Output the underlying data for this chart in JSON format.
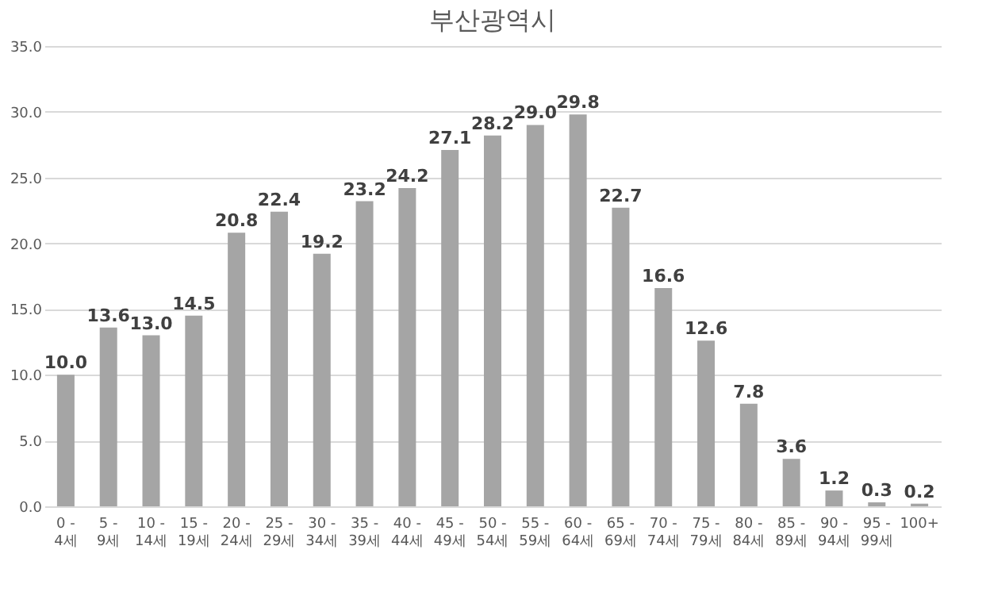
{
  "chart_data": {
    "type": "bar",
    "title": "부산광역시",
    "categories": [
      "0 - 4세",
      "5 - 9세",
      "10 - 14세",
      "15 - 19세",
      "20 - 24세",
      "25 - 29세",
      "30 - 34세",
      "35 - 39세",
      "40 - 44세",
      "45 - 49세",
      "50 - 54세",
      "55 - 59세",
      "60 - 64세",
      "65 - 69세",
      "70 - 74세",
      "75 - 79세",
      "80 - 84세",
      "85 - 89세",
      "90 - 94세",
      "95 - 99세",
      "100+"
    ],
    "values": [
      10.0,
      13.6,
      13.0,
      14.5,
      20.8,
      22.4,
      19.2,
      23.2,
      24.2,
      27.1,
      28.2,
      29.0,
      29.8,
      22.7,
      16.6,
      12.6,
      7.8,
      3.6,
      1.2,
      0.3,
      0.2
    ],
    "value_labels": [
      "10.0",
      "13.6",
      "13.0",
      "14.5",
      "20.8",
      "22.4",
      "19.2",
      "23.2",
      "24.2",
      "27.1",
      "28.2",
      "29.0",
      "29.8",
      "22.7",
      "16.6",
      "12.6",
      "7.8",
      "3.6",
      "1.2",
      "0.3",
      "0.2"
    ],
    "color": "#a5a5a5",
    "ylim": [
      0,
      35
    ],
    "yticks": [
      {
        "value": 0,
        "label": "0.0"
      },
      {
        "value": 5,
        "label": "5.0"
      },
      {
        "value": 10,
        "label": "10.0"
      },
      {
        "value": 15,
        "label": "15.0"
      },
      {
        "value": 20,
        "label": "20.0"
      },
      {
        "value": 25,
        "label": "25.0"
      },
      {
        "value": 30,
        "label": "30.0"
      },
      {
        "value": 35,
        "label": "35.0"
      }
    ],
    "grid": "y"
  }
}
